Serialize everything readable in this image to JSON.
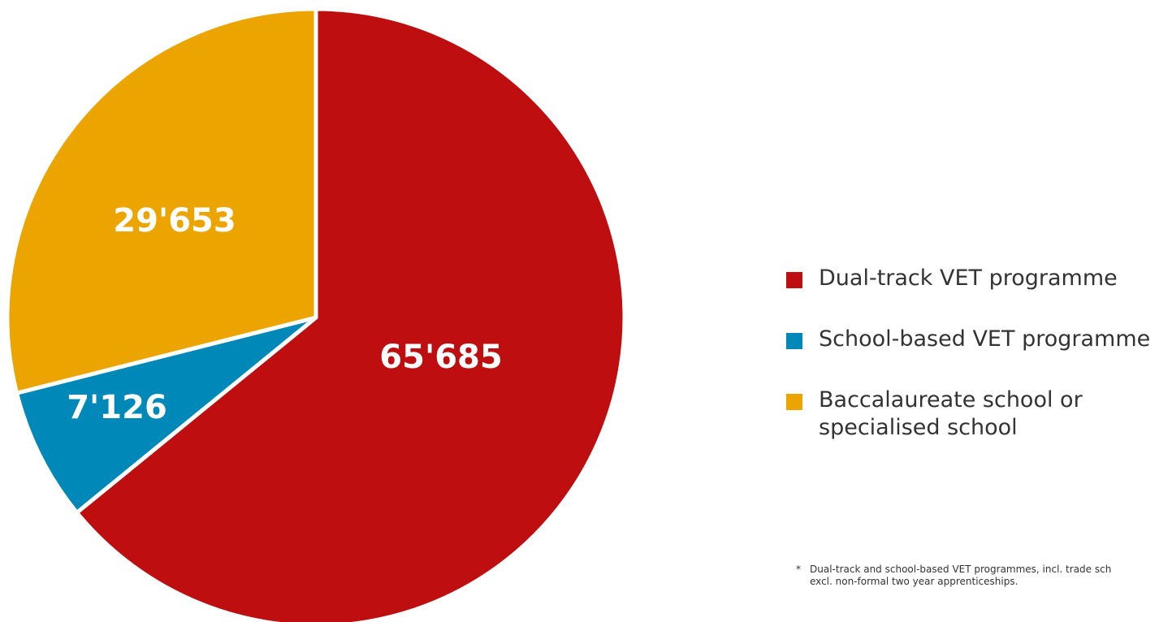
{
  "chart_data": {
    "type": "pie",
    "title": "",
    "slices": [
      {
        "label": "Dual-track VET programme",
        "value": 65685,
        "display": "65'685",
        "color": "#be0e0f"
      },
      {
        "label": "School-based VET programme",
        "value": 7126,
        "display": "7'126",
        "color": "#0089b8"
      },
      {
        "label": "Baccalaureate school or specialised school",
        "value": 29653,
        "display": "29'653",
        "color": "#eca500"
      }
    ],
    "legend": {
      "placement": "right",
      "items": [
        {
          "label": "Dual-track VET programme",
          "color": "#be0e0f"
        },
        {
          "label": "School-based VET programme",
          "color": "#0089b8"
        },
        {
          "label_line1": "Baccalaureate school or",
          "label_line2": "specialised school",
          "color": "#eca500"
        }
      ]
    },
    "footnote": {
      "marker": "*",
      "line1": "Dual-track and school-based VET programmes, incl. trade sch",
      "line2": "excl. non-formal two year apprenticeships."
    }
  }
}
